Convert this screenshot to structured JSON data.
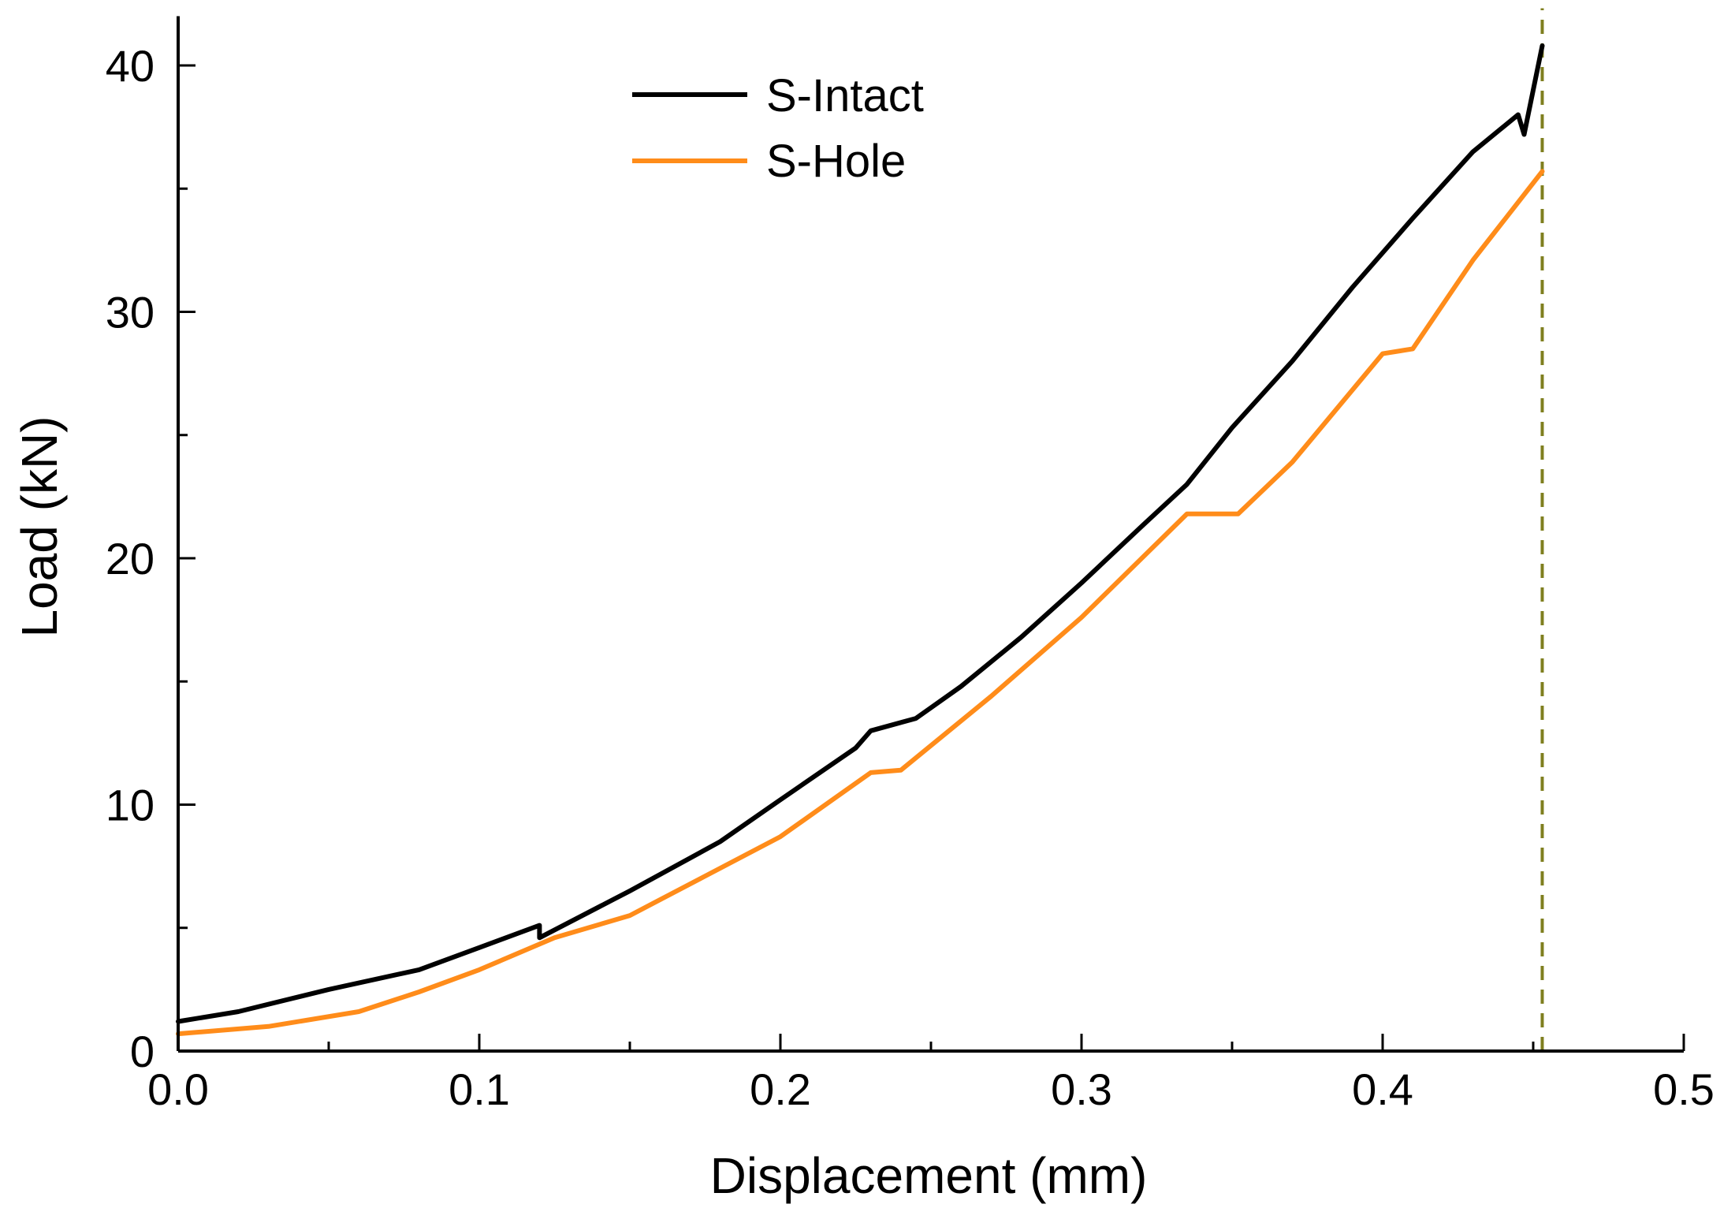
{
  "chart_data": {
    "type": "line",
    "xlabel": "Displacement (mm)",
    "ylabel": "Load (kN)",
    "xlim": [
      0,
      0.5
    ],
    "ylim": [
      0,
      42
    ],
    "x_ticks": [
      0.0,
      0.1,
      0.2,
      0.3,
      0.4,
      0.5
    ],
    "x_tick_labels": [
      "0.0",
      "0.1",
      "0.2",
      "0.3",
      "0.4",
      "0.5"
    ],
    "y_ticks": [
      0,
      10,
      20,
      30,
      40
    ],
    "y_tick_labels": [
      "0",
      "10",
      "20",
      "30",
      "40"
    ],
    "legend_position": "top-center",
    "reference_line": {
      "x": 0.453,
      "style": "dashed",
      "color": "#7f7f1f"
    },
    "series": [
      {
        "name": "S-Intact",
        "color": "#000000",
        "x": [
          0.0,
          0.02,
          0.05,
          0.08,
          0.1,
          0.12,
          0.12,
          0.15,
          0.18,
          0.2,
          0.225,
          0.23,
          0.245,
          0.26,
          0.28,
          0.3,
          0.32,
          0.335,
          0.35,
          0.37,
          0.39,
          0.41,
          0.43,
          0.445,
          0.447,
          0.453
        ],
        "values": [
          1.2,
          1.6,
          2.5,
          3.3,
          4.2,
          5.1,
          4.6,
          6.5,
          8.5,
          10.2,
          12.3,
          13.0,
          13.5,
          14.8,
          16.8,
          19.0,
          21.3,
          23.0,
          25.3,
          28.0,
          31.0,
          33.8,
          36.5,
          38.0,
          37.2,
          40.8
        ]
      },
      {
        "name": "S-Hole",
        "color": "#ff8c1a",
        "x": [
          0.0,
          0.03,
          0.06,
          0.08,
          0.1,
          0.125,
          0.15,
          0.175,
          0.2,
          0.23,
          0.24,
          0.27,
          0.3,
          0.32,
          0.335,
          0.352,
          0.37,
          0.4,
          0.41,
          0.43,
          0.453
        ],
        "values": [
          0.7,
          1.0,
          1.6,
          2.4,
          3.3,
          4.6,
          5.5,
          7.1,
          8.7,
          11.3,
          11.4,
          14.4,
          17.6,
          20.0,
          21.8,
          21.8,
          23.9,
          28.3,
          28.5,
          32.1,
          35.7
        ]
      }
    ]
  }
}
